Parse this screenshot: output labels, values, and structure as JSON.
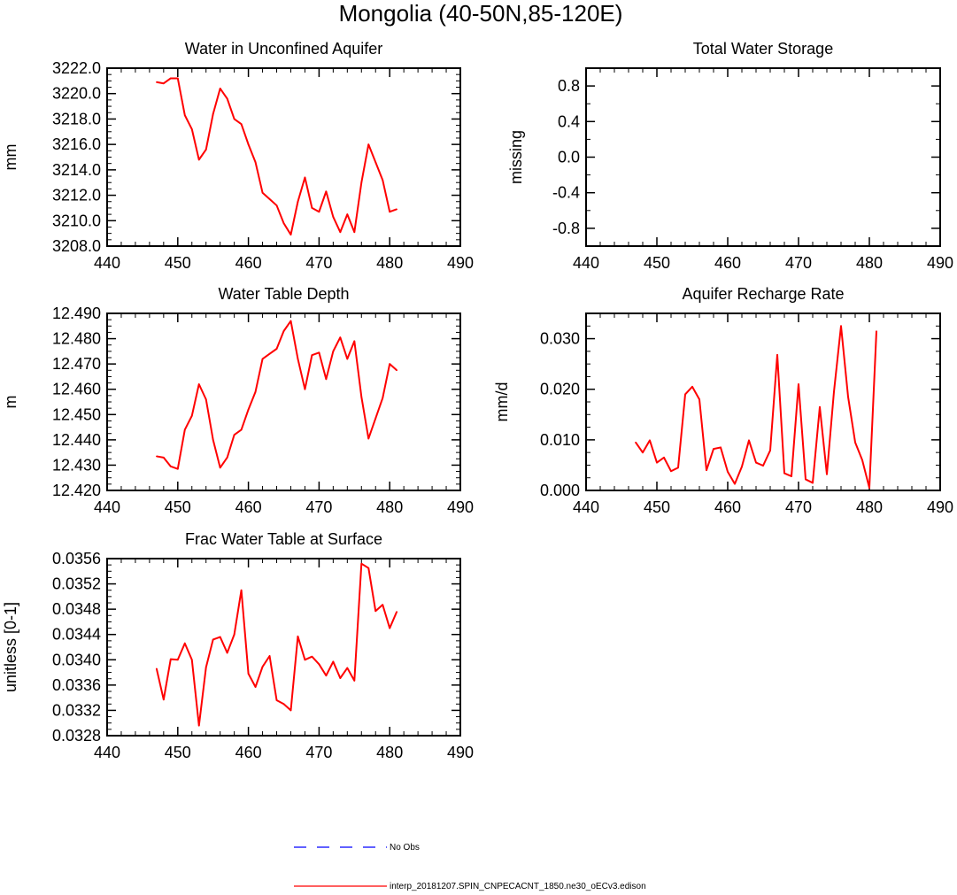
{
  "figure": {
    "title": "Mongolia (40-50N,85-120E)",
    "series_color": "#ff0000",
    "obs_color": "#0000ff"
  },
  "legend": {
    "obs_label": "No Obs",
    "model_label": "interp_20181207.SPIN_CNPECACNT_1850.ne30_oECv3.edison"
  },
  "chart_data": [
    {
      "id": "unconfined",
      "type": "line",
      "title": "Water in Unconfined Aquifer",
      "ylabel": "mm",
      "xlim": [
        440,
        490
      ],
      "ylim": [
        3208,
        3222
      ],
      "xticks": [
        440,
        450,
        460,
        470,
        480,
        490
      ],
      "yticks": [
        3208,
        3210,
        3212,
        3214,
        3216,
        3218,
        3220,
        3222
      ],
      "ytick_decimals": 1,
      "yminor": 4,
      "x": [
        447,
        448,
        449,
        450,
        451,
        452,
        453,
        454,
        455,
        456,
        457,
        458,
        459,
        460,
        461,
        462,
        463,
        464,
        465,
        466,
        467,
        468,
        469,
        470,
        471,
        472,
        473,
        474,
        475,
        476,
        477,
        478,
        479,
        480,
        481
      ],
      "values": [
        3220.9,
        3220.8,
        3221.2,
        3221.2,
        3218.3,
        3217.2,
        3214.8,
        3215.6,
        3218.4,
        3220.4,
        3219.6,
        3218.0,
        3217.6,
        3216.0,
        3214.6,
        3212.2,
        3211.7,
        3211.2,
        3209.8,
        3208.9,
        3211.5,
        3213.4,
        3211.0,
        3210.7,
        3212.3,
        3210.3,
        3209.1,
        3210.5,
        3209.1,
        3213.0,
        3216.0,
        3214.6,
        3213.2,
        3210.7,
        3210.9
      ]
    },
    {
      "id": "tws",
      "type": "line",
      "title": "Total Water Storage",
      "ylabel": "missing",
      "xlim": [
        440,
        490
      ],
      "ylim": [
        -1.0,
        1.0
      ],
      "xticks": [
        440,
        450,
        460,
        470,
        480,
        490
      ],
      "yticks": [
        -0.8,
        -0.4,
        0.0,
        0.4,
        0.8
      ],
      "ytick_decimals": 1,
      "yminor": 2,
      "x": [],
      "values": []
    },
    {
      "id": "wtd",
      "type": "line",
      "title": "Water Table Depth",
      "ylabel": "m",
      "xlim": [
        440,
        490
      ],
      "ylim": [
        12.42,
        12.49
      ],
      "xticks": [
        440,
        450,
        460,
        470,
        480,
        490
      ],
      "yticks": [
        12.42,
        12.43,
        12.44,
        12.45,
        12.46,
        12.47,
        12.48,
        12.49
      ],
      "ytick_decimals": 3,
      "yminor": 4,
      "x": [
        447,
        448,
        449,
        450,
        451,
        452,
        453,
        454,
        455,
        456,
        457,
        458,
        459,
        460,
        461,
        462,
        463,
        464,
        465,
        466,
        467,
        468,
        469,
        470,
        471,
        472,
        473,
        474,
        475,
        476,
        477,
        478,
        479,
        480,
        481
      ],
      "values": [
        12.4335,
        12.433,
        12.4295,
        12.4285,
        12.444,
        12.4495,
        12.462,
        12.456,
        12.44,
        12.429,
        12.433,
        12.442,
        12.444,
        12.452,
        12.459,
        12.472,
        12.474,
        12.476,
        12.483,
        12.487,
        12.472,
        12.46,
        12.4735,
        12.4745,
        12.464,
        12.475,
        12.4805,
        12.472,
        12.479,
        12.457,
        12.4405,
        12.4485,
        12.4565,
        12.47,
        12.4675
      ]
    },
    {
      "id": "recharge",
      "type": "line",
      "title": "Aquifer Recharge Rate",
      "ylabel": "mm/d",
      "xlim": [
        440,
        490
      ],
      "ylim": [
        0.0,
        0.035
      ],
      "xticks": [
        440,
        450,
        460,
        470,
        480,
        490
      ],
      "yticks": [
        0.0,
        0.01,
        0.02,
        0.03
      ],
      "ytick_decimals": 3,
      "yminor": 4,
      "x": [
        447,
        448,
        449,
        450,
        451,
        452,
        453,
        454,
        455,
        456,
        457,
        458,
        459,
        460,
        461,
        462,
        463,
        464,
        465,
        466,
        467,
        468,
        469,
        470,
        471,
        472,
        473,
        474,
        475,
        476,
        477,
        478,
        479,
        480,
        481
      ],
      "values": [
        0.0095,
        0.0075,
        0.0099,
        0.0055,
        0.0065,
        0.0038,
        0.0045,
        0.019,
        0.0205,
        0.018,
        0.004,
        0.0082,
        0.0085,
        0.0037,
        0.0013,
        0.0047,
        0.0099,
        0.0055,
        0.0049,
        0.0079,
        0.0268,
        0.0034,
        0.0028,
        0.021,
        0.0022,
        0.0015,
        0.0165,
        0.0032,
        0.0195,
        0.0325,
        0.0185,
        0.0095,
        0.006,
        0.0005,
        0.0315
      ]
    },
    {
      "id": "fracwt",
      "type": "line",
      "title": "Frac Water Table at Surface",
      "ylabel": "unitless [0-1]",
      "xlim": [
        440,
        490
      ],
      "ylim": [
        0.0328,
        0.0356
      ],
      "xticks": [
        440,
        450,
        460,
        470,
        480,
        490
      ],
      "yticks": [
        0.0328,
        0.0332,
        0.0336,
        0.034,
        0.0344,
        0.0348,
        0.0352,
        0.0356
      ],
      "ytick_decimals": 4,
      "yminor": 4,
      "x": [
        447,
        448,
        449,
        450,
        451,
        452,
        453,
        454,
        455,
        456,
        457,
        458,
        459,
        460,
        461,
        462,
        463,
        464,
        465,
        466,
        467,
        468,
        469,
        470,
        471,
        472,
        473,
        474,
        475,
        476,
        477,
        478,
        479,
        480,
        481
      ],
      "values": [
        0.03386,
        0.03337,
        0.03401,
        0.034,
        0.03426,
        0.034,
        0.03296,
        0.03388,
        0.03432,
        0.03436,
        0.03411,
        0.0344,
        0.0351,
        0.03378,
        0.03357,
        0.03389,
        0.03406,
        0.03336,
        0.0333,
        0.0332,
        0.03437,
        0.034,
        0.03405,
        0.03393,
        0.03375,
        0.03397,
        0.03371,
        0.03387,
        0.03367,
        0.03552,
        0.03545,
        0.03477,
        0.03487,
        0.0345,
        0.03476
      ]
    }
  ]
}
